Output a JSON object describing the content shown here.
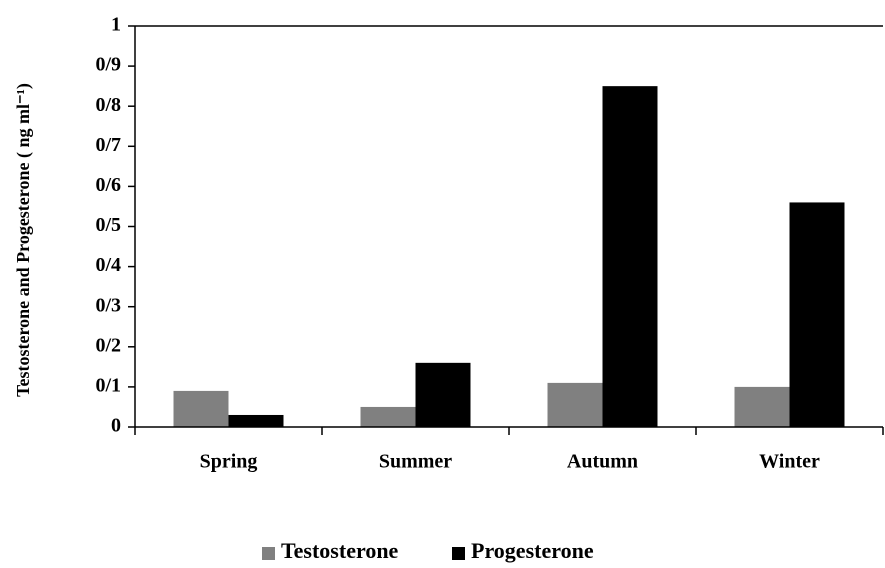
{
  "chart_data": {
    "type": "bar",
    "y_label": "Testosterone and Progesterone ( ng ml⁻¹)",
    "categories": [
      "Spring",
      "Summer",
      "Autumn",
      "Winter"
    ],
    "series": [
      {
        "name": "Testosterone",
        "color": "#808080",
        "values": [
          0.09,
          0.05,
          0.11,
          0.1
        ]
      },
      {
        "name": "Progesterone",
        "color": "#000000",
        "values": [
          0.03,
          0.16,
          0.85,
          0.56
        ]
      }
    ],
    "ylim": [
      0,
      1
    ],
    "yticks": [
      0,
      {
        "value": 0.1,
        "label": "0/1"
      },
      {
        "value": 0.2,
        "label": "0/2"
      },
      {
        "value": 0.3,
        "label": "0/3"
      },
      {
        "value": 0.4,
        "label": "0/4"
      },
      {
        "value": 0.5,
        "label": "0/5"
      },
      {
        "value": 0.6,
        "label": "0/6"
      },
      {
        "value": 0.7,
        "label": "0/7"
      },
      {
        "value": 0.8,
        "label": "0/8"
      },
      {
        "value": 0.9,
        "label": "0/9"
      },
      1
    ],
    "grid": false,
    "legend": "bottom"
  }
}
